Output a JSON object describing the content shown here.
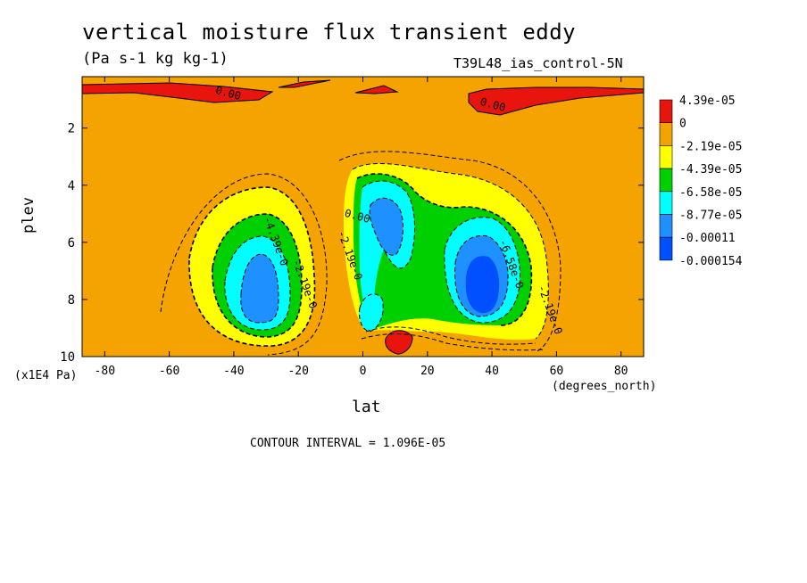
{
  "title": "vertical moisture flux transient eddy",
  "units": "(Pa s-1 kg kg-1)",
  "dataset": "T39L48_ias_control-5N",
  "contour_interval": "CONTOUR INTERVAL = 1.096E-05",
  "chart_data": {
    "type": "heatmap",
    "xlabel": "lat",
    "ylabel": "plev",
    "x_units": "(degrees_north)",
    "y_units": "(x1E4 Pa)",
    "xlim": [
      -87,
      87
    ],
    "ylim": [
      10,
      0.2
    ],
    "x_ticks": [
      -80,
      -60,
      -40,
      -20,
      0,
      20,
      40,
      60,
      80
    ],
    "y_ticks": [
      2,
      4,
      6,
      8,
      10
    ],
    "legend": {
      "position": "right",
      "levels": [
        "4.39e-05",
        "0",
        "-2.19e-05",
        "-4.39e-05",
        "-6.58e-05",
        "-8.77e-05",
        "-0.00011",
        "-0.000154"
      ],
      "colors": [
        "#e8140e",
        "#f5a300",
        "#ffff00",
        "#00d000",
        "#00ffff",
        "#1e90ff",
        "#0050ff"
      ]
    },
    "contour_labels": [
      {
        "text": "0.00",
        "lat": -42,
        "plev": 0.9
      },
      {
        "text": "0.00",
        "lat": 40,
        "plev": 1.3
      },
      {
        "text": "-4.39e-0",
        "lat": -28,
        "plev": 6.0
      },
      {
        "text": "-2.19e-0",
        "lat": -19,
        "plev": 7.5
      },
      {
        "text": "-2.19e-0",
        "lat": -5,
        "plev": 6.5
      },
      {
        "text": "0.00",
        "lat": -2,
        "plev": 5.2
      },
      {
        "text": "-6.58e-0",
        "lat": 45,
        "plev": 6.8
      },
      {
        "text": "-2.19e-0",
        "lat": 57,
        "plev": 8.4
      }
    ]
  }
}
